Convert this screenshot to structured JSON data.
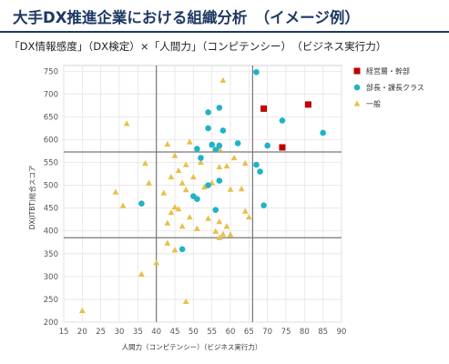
{
  "page": {
    "title": "大手DX推進企業における組織分析　（イメージ例）",
    "subtitle": "「DX情報感度」（DX検定）×「人間力」（コンピテンシー）　（ビジネス実行力）"
  },
  "colors": {
    "title": "#1f3864",
    "executive": "#c00000",
    "manager": "#1fb3c8",
    "general": "#e8c04a",
    "quadrant_line": "#777777",
    "grid": "#e4e4e4"
  },
  "chart_data": {
    "type": "scatter",
    "xlabel": "人間力（コンピテンシー）（ビジネス実行力）",
    "ylabel": "DX(ITBT)総合スコア",
    "xlim": [
      15,
      90
    ],
    "ylim": [
      200,
      750
    ],
    "xticks": [
      15,
      20,
      25,
      30,
      35,
      40,
      45,
      50,
      55,
      60,
      65,
      70,
      75,
      80,
      85,
      90
    ],
    "yticks": [
      200,
      250,
      300,
      350,
      400,
      450,
      500,
      550,
      600,
      650,
      700,
      750
    ],
    "quadrant_lines": {
      "x": [
        40,
        66
      ],
      "y": [
        385,
        573
      ]
    },
    "grid": true,
    "legend_position": "right",
    "series": [
      {
        "name": "経営層・幹部",
        "marker": "square",
        "points": [
          [
            69,
            668
          ],
          [
            74,
            583
          ],
          [
            81,
            677
          ]
        ]
      },
      {
        "name": "部長・課長クラス",
        "marker": "circle",
        "points": [
          [
            67,
            748
          ],
          [
            57,
            670
          ],
          [
            54,
            660
          ],
          [
            58,
            620
          ],
          [
            85,
            615
          ],
          [
            74,
            642
          ],
          [
            54,
            625
          ],
          [
            62,
            592
          ],
          [
            55,
            589
          ],
          [
            57,
            587
          ],
          [
            51,
            580
          ],
          [
            70,
            587
          ],
          [
            52,
            560
          ],
          [
            67,
            545
          ],
          [
            56,
            578
          ],
          [
            68,
            530
          ],
          [
            57,
            510
          ],
          [
            54,
            500
          ],
          [
            50,
            476
          ],
          [
            51,
            470
          ],
          [
            36,
            460
          ],
          [
            69,
            456
          ],
          [
            56,
            446
          ],
          [
            47,
            360
          ]
        ]
      },
      {
        "name": "一般",
        "marker": "triangle",
        "points": [
          [
            58,
            730
          ],
          [
            32,
            635
          ],
          [
            55,
            588
          ],
          [
            49,
            595
          ],
          [
            57,
            580
          ],
          [
            43,
            590
          ],
          [
            45,
            565
          ],
          [
            59,
            542
          ],
          [
            57,
            540
          ],
          [
            61,
            560
          ],
          [
            64,
            548
          ],
          [
            37,
            548
          ],
          [
            52,
            550
          ],
          [
            48,
            545
          ],
          [
            46,
            532
          ],
          [
            44,
            518
          ],
          [
            50,
            518
          ],
          [
            38,
            505
          ],
          [
            47,
            505
          ],
          [
            53,
            496
          ],
          [
            55,
            505
          ],
          [
            48,
            490
          ],
          [
            60,
            491
          ],
          [
            63,
            492
          ],
          [
            29,
            485
          ],
          [
            31,
            455
          ],
          [
            42,
            483
          ],
          [
            45,
            452
          ],
          [
            46,
            448
          ],
          [
            44,
            440
          ],
          [
            49,
            430
          ],
          [
            54,
            427
          ],
          [
            57,
            420
          ],
          [
            59,
            410
          ],
          [
            47,
            410
          ],
          [
            51,
            405
          ],
          [
            43,
            417
          ],
          [
            65,
            430
          ],
          [
            64,
            443
          ],
          [
            56,
            399
          ],
          [
            58,
            393
          ],
          [
            60,
            392
          ],
          [
            57,
            385
          ],
          [
            43,
            373
          ],
          [
            45,
            358
          ],
          [
            40,
            330
          ],
          [
            36,
            305
          ],
          [
            48,
            245
          ],
          [
            20,
            225
          ]
        ]
      }
    ]
  }
}
